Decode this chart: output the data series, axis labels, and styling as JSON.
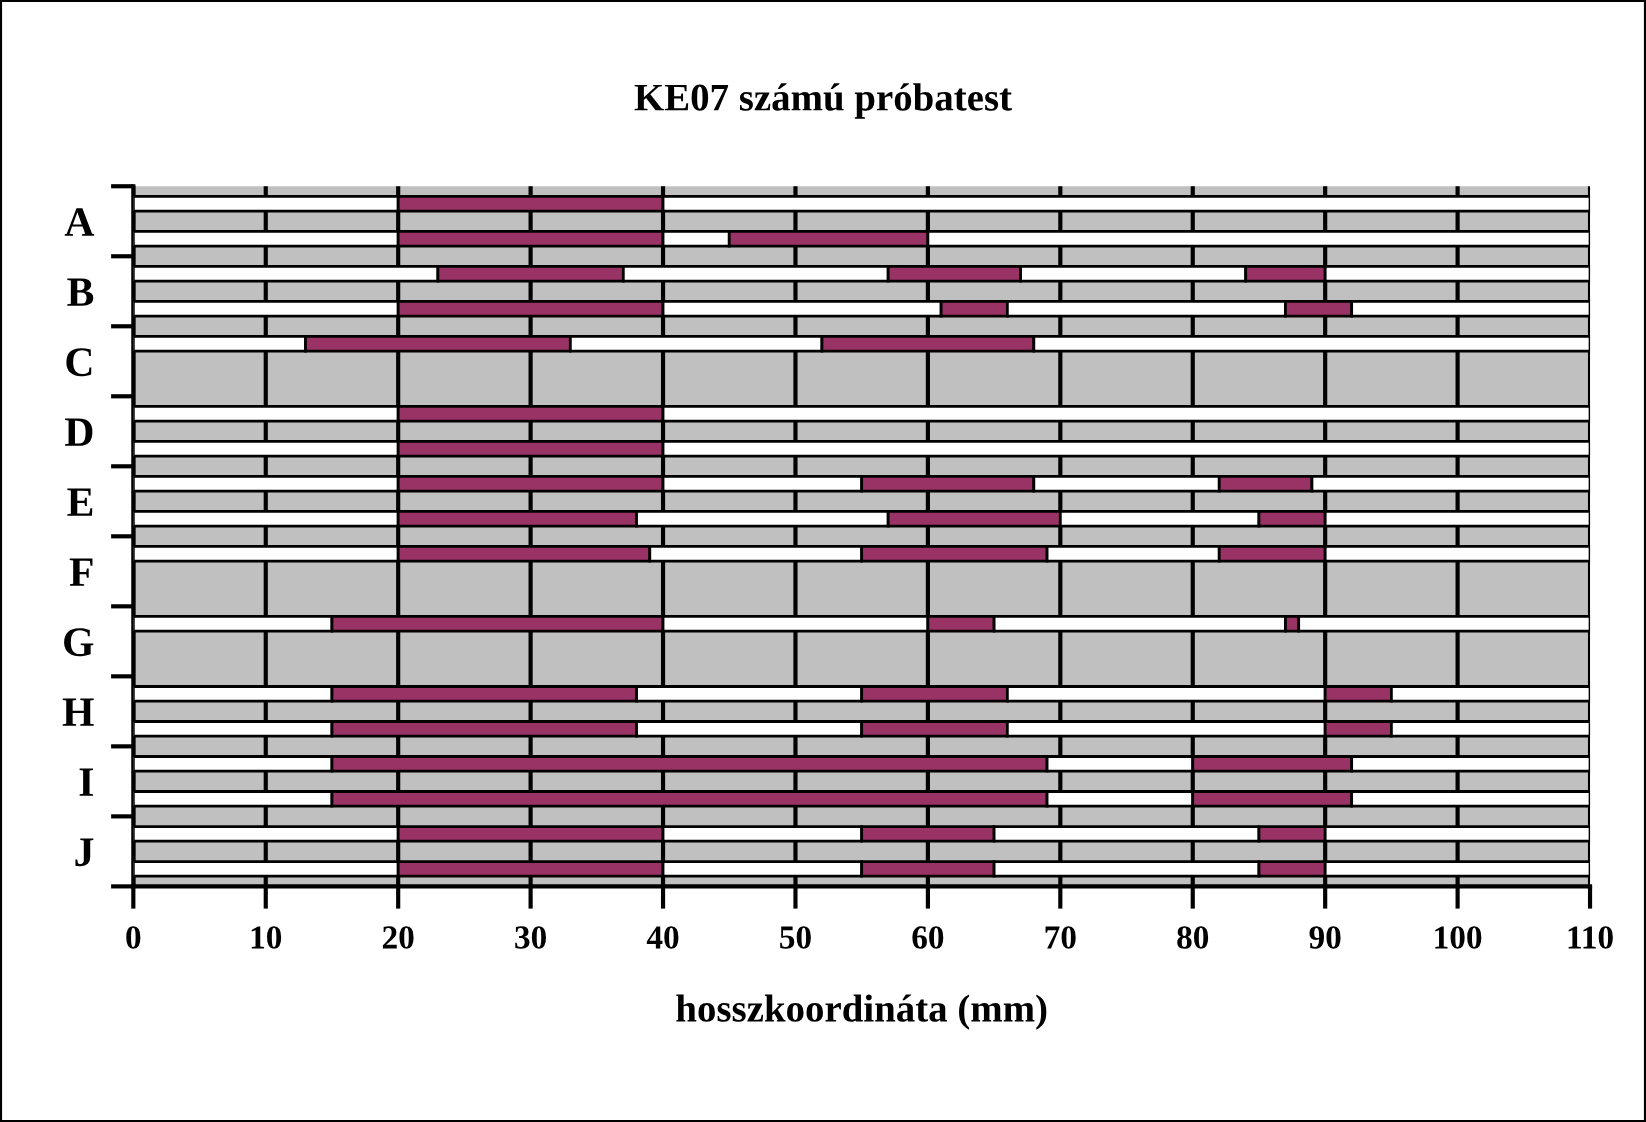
{
  "chart_data": {
    "type": "bar",
    "orientation": "horizontal",
    "stacked": true,
    "title": "KE07 számú próbatest",
    "xlabel": "hosszkoordináta (mm)",
    "categories": [
      "A",
      null,
      "B",
      null,
      "C",
      null,
      "D",
      null,
      "E",
      null,
      "F",
      null,
      "G",
      null,
      "H",
      null,
      "I",
      null,
      "J",
      null
    ],
    "series": [
      {
        "color": "#ffffff",
        "values": [
          20,
          20,
          23,
          20,
          13,
          null,
          20,
          20,
          20,
          20,
          20,
          null,
          15,
          null,
          15,
          15,
          15,
          15,
          20,
          20
        ]
      },
      {
        "color": "#993366",
        "values": [
          20,
          20,
          14,
          20,
          20,
          null,
          20,
          20,
          20,
          18,
          19,
          null,
          25,
          null,
          23,
          23,
          54,
          54,
          20,
          20
        ]
      },
      {
        "color": "#ffffff",
        "values": [
          70,
          5,
          20,
          21,
          19,
          null,
          70,
          70,
          15,
          19,
          16,
          null,
          20,
          null,
          17,
          17,
          11,
          11,
          15,
          15
        ]
      },
      {
        "color": "#993366",
        "values": [
          null,
          15,
          10,
          5,
          16,
          null,
          null,
          null,
          13,
          13,
          14,
          null,
          5,
          null,
          11,
          11,
          12,
          12,
          10,
          10
        ]
      },
      {
        "color": "#ffffff",
        "values": [
          null,
          50,
          17,
          21,
          42,
          null,
          null,
          null,
          14,
          15,
          13,
          null,
          22,
          null,
          24,
          24,
          18,
          18,
          20,
          20
        ]
      },
      {
        "color": "#993366",
        "values": [
          null,
          null,
          6,
          5,
          null,
          null,
          null,
          null,
          7,
          5,
          8,
          null,
          1,
          null,
          5,
          5,
          null,
          null,
          5,
          5
        ]
      },
      {
        "color": "#ffffff",
        "values": [
          null,
          null,
          20,
          18,
          null,
          null,
          null,
          null,
          21,
          20,
          20,
          null,
          22,
          null,
          15,
          15,
          null,
          null,
          20,
          20
        ]
      }
    ],
    "xlim": [
      0,
      110
    ],
    "xticks": [
      0,
      10,
      20,
      30,
      40,
      50,
      60,
      70,
      80,
      90,
      100,
      110
    ],
    "grid": "x",
    "legend": false
  }
}
